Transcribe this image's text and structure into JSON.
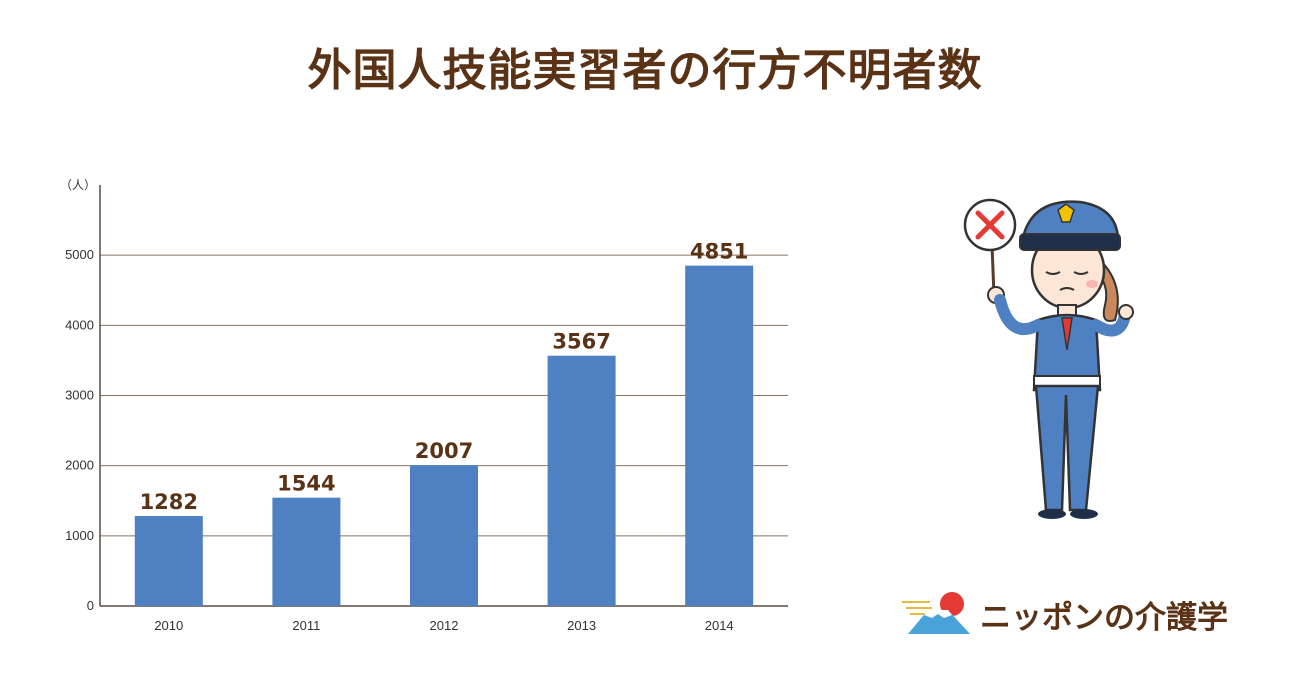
{
  "title": "外国人技能実習者の行方不明者数",
  "logo": {
    "text": "ニッポンの介護学"
  },
  "colors": {
    "title": "#5a3216",
    "bar": "#4f81c2",
    "grid": "#8a7060",
    "label": "#5a3216"
  },
  "chart_data": {
    "type": "bar",
    "title": "外国人技能実習者の行方不明者数",
    "ylabel": "（人）",
    "xlabel": "",
    "categories": [
      "2010",
      "2011",
      "2012",
      "2013",
      "2014"
    ],
    "values": [
      1282,
      1544,
      2007,
      3567,
      4851
    ],
    "ylim": [
      0,
      6000
    ],
    "yticks": [
      0,
      1000,
      2000,
      3000,
      4000,
      5000
    ],
    "grid": true,
    "data_labels": true
  }
}
